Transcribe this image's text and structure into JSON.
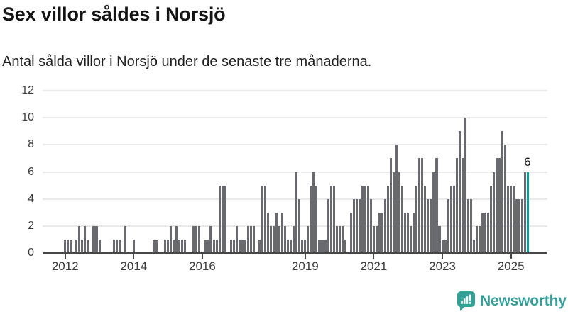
{
  "header": {
    "title": "Sex villor såldes i Norsjö",
    "subtitle": "Antal sålda villor i Norsjö under de senaste tre månaderna."
  },
  "chart_data": {
    "type": "bar",
    "title": "Sex villor såldes i Norsjö",
    "subtitle": "Antal sålda villor i Norsjö under de senaste tre månaderna.",
    "frequency": "monthly",
    "x_start": "2012-01",
    "x_end": "2025-07",
    "values": [
      1,
      1,
      1,
      0,
      1,
      2,
      1,
      2,
      1,
      0,
      2,
      2,
      1,
      0,
      0,
      0,
      0,
      1,
      1,
      1,
      0,
      2,
      0,
      0,
      1,
      0,
      0,
      0,
      0,
      0,
      0,
      1,
      1,
      0,
      0,
      1,
      1,
      2,
      1,
      2,
      1,
      1,
      1,
      0,
      0,
      2,
      2,
      2,
      0,
      1,
      1,
      2,
      1,
      1,
      5,
      5,
      5,
      0,
      1,
      1,
      2,
      1,
      1,
      1,
      2,
      2,
      2,
      0,
      1,
      5,
      5,
      3,
      2,
      2,
      3,
      2,
      3,
      2,
      1,
      1,
      2,
      6,
      4,
      1,
      1,
      2,
      5,
      6,
      5,
      1,
      1,
      1,
      4,
      5,
      5,
      2,
      2,
      2,
      1,
      0,
      3,
      4,
      4,
      4,
      5,
      5,
      5,
      4,
      2,
      2,
      3,
      3,
      4,
      5,
      7,
      6,
      8,
      6,
      5,
      3,
      3,
      2,
      3,
      5,
      7,
      7,
      5,
      4,
      4,
      6,
      7,
      2,
      1,
      1,
      4,
      5,
      5,
      7,
      9,
      7,
      10,
      4,
      4,
      1,
      2,
      2,
      3,
      3,
      3,
      5,
      6,
      7,
      7,
      9,
      8,
      5,
      5,
      5,
      4,
      4,
      4,
      6,
      6
    ],
    "ylim": [
      0,
      12
    ],
    "yticks": [
      0,
      2,
      4,
      6,
      8,
      10,
      12
    ],
    "xticks": [
      {
        "label": "2012",
        "month_index": 0
      },
      {
        "label": "2014",
        "month_index": 24
      },
      {
        "label": "2016",
        "month_index": 48
      },
      {
        "label": "2019",
        "month_index": 84
      },
      {
        "label": "2021",
        "month_index": 108
      },
      {
        "label": "2023",
        "month_index": 132
      },
      {
        "label": "2025",
        "month_index": 156
      }
    ],
    "grid": "horizontal",
    "legend": "none",
    "bar_color": "#696970",
    "highlight_color": "#00a19c",
    "highlight_index": 162,
    "highlight_label": "6"
  },
  "footer": {
    "brand": "Newsworthy",
    "brand_color": "#379e98",
    "logo_icon": "newsworthy-speech-bubble-chart-icon"
  }
}
